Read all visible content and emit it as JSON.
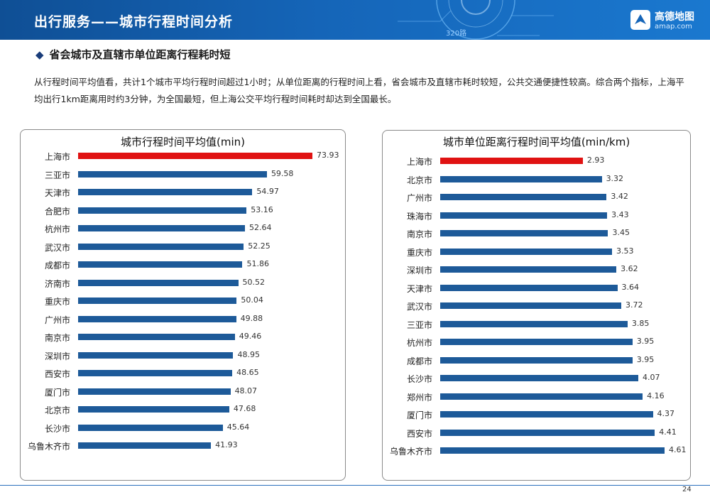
{
  "header": {
    "title": "出行服务——城市行程时间分析",
    "route_label": "320路",
    "logo_name": "高德地图",
    "logo_url": "amap.com"
  },
  "subtitle": "省会城市及直辖市单位距离行程耗时短",
  "paragraph": "从行程时间平均值看，共计1个城市平均行程时间超过1小时；从单位距离的行程时间上看，省会城市及直辖市耗时较短，公共交通便捷性较高。综合两个指标，上海平均出行1km距离用时约3分钟，为全国最短，但上海公交平均行程时间耗时却达到全国最长。",
  "page_number": "24",
  "colors": {
    "bar": "#1d5a99",
    "highlight": "#e01212",
    "header": "#1565b8"
  },
  "chart_data": [
    {
      "type": "bar",
      "orientation": "horizontal",
      "title": "城市行程时间平均值(min)",
      "categories": [
        "上海市",
        "三亚市",
        "天津市",
        "合肥市",
        "杭州市",
        "武汉市",
        "成都市",
        "济南市",
        "重庆市",
        "广州市",
        "南京市",
        "深圳市",
        "西安市",
        "厦门市",
        "北京市",
        "长沙市",
        "乌鲁木齐市"
      ],
      "values": [
        73.93,
        59.58,
        54.97,
        53.16,
        52.64,
        52.25,
        51.86,
        50.52,
        50.04,
        49.88,
        49.46,
        48.95,
        48.65,
        48.07,
        47.68,
        45.64,
        41.93
      ],
      "highlight_index": 0,
      "xlim": [
        0,
        73.93
      ]
    },
    {
      "type": "bar",
      "orientation": "horizontal",
      "title": "城市单位距离行程时间平均值(min/km)",
      "categories": [
        "上海市",
        "北京市",
        "广州市",
        "珠海市",
        "南京市",
        "重庆市",
        "深圳市",
        "天津市",
        "武汉市",
        "三亚市",
        "杭州市",
        "成都市",
        "长沙市",
        "郑州市",
        "厦门市",
        "西安市",
        "乌鲁木齐市"
      ],
      "values": [
        2.93,
        3.32,
        3.42,
        3.43,
        3.45,
        3.53,
        3.62,
        3.64,
        3.72,
        3.85,
        3.95,
        3.95,
        4.07,
        4.16,
        4.37,
        4.41,
        4.61
      ],
      "highlight_index": 0,
      "xlim": [
        0,
        4.61
      ]
    }
  ]
}
